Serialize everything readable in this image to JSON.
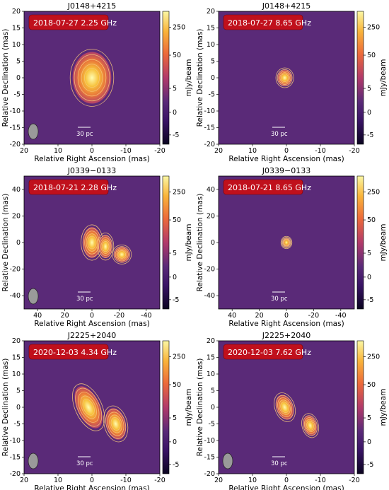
{
  "figure": {
    "cbar_label": "mJy/beam",
    "cbar_ticks": [
      "250",
      "50",
      "5",
      "0",
      "-5"
    ],
    "xlabel": "Relative Right Ascension (mas)",
    "ylabel": "Relative Declination (mas)",
    "scalebar_label": "30 pc",
    "colors": {
      "background": "#5a2a78",
      "contour": "#f6c87a",
      "label_box": "#c0101c",
      "core_hot": "#fff7a6"
    }
  },
  "chart_data": [
    {
      "type": "heatmap",
      "title": "J0148+4215",
      "epoch_label": "2018-07-27 2.25 GHz",
      "xlim": [
        20,
        -20
      ],
      "ylim": [
        -20,
        20
      ],
      "xticks": [
        20,
        10,
        0,
        -10,
        -20
      ],
      "yticks": [
        20,
        15,
        10,
        5,
        0,
        -5,
        -10,
        -15,
        -20
      ],
      "components": [
        {
          "x": 0,
          "y": 0,
          "rx": 6,
          "ry": 8,
          "angle": 0
        }
      ],
      "beam": true
    },
    {
      "type": "heatmap",
      "title": "J0148+4215",
      "epoch_label": "2018-07-27 8.65 GHz",
      "xlim": [
        20,
        -20
      ],
      "ylim": [
        -20,
        20
      ],
      "xticks": [
        20,
        10,
        0,
        -10,
        -20
      ],
      "yticks": [
        20,
        15,
        10,
        5,
        0,
        -5,
        -10,
        -15,
        -20
      ],
      "components": [
        {
          "x": 0.5,
          "y": 0,
          "rx": 2.2,
          "ry": 2.5,
          "angle": 0
        }
      ],
      "beam": false
    },
    {
      "type": "heatmap",
      "title": "J0339−0133",
      "epoch_label": "2018-07-21 2.28 GHz",
      "xlim": [
        50,
        -50
      ],
      "ylim": [
        -50,
        50
      ],
      "xticks": [
        40,
        20,
        0,
        -20,
        -40
      ],
      "yticks": [
        40,
        20,
        0,
        -20,
        -40
      ],
      "components": [
        {
          "x": 0,
          "y": 0,
          "rx": 7,
          "ry": 12,
          "angle": 0
        },
        {
          "x": -10,
          "y": -3,
          "rx": 5,
          "ry": 9,
          "angle": 0
        },
        {
          "x": -22,
          "y": -9,
          "rx": 6,
          "ry": 6,
          "angle": 0
        }
      ],
      "beam": true
    },
    {
      "type": "heatmap",
      "title": "J0339−0133",
      "epoch_label": "2018-07-21 8.65 GHz",
      "xlim": [
        50,
        -50
      ],
      "ylim": [
        -50,
        50
      ],
      "xticks": [
        40,
        20,
        0,
        -20,
        -40
      ],
      "yticks": [
        40,
        20,
        0,
        -20,
        -40
      ],
      "components": [
        {
          "x": 0,
          "y": 0,
          "rx": 3,
          "ry": 3.5,
          "angle": 0
        }
      ],
      "beam": false
    },
    {
      "type": "heatmap",
      "title": "J2225+2040",
      "epoch_label": "2020-12-03 4.34 GHz",
      "xlim": [
        20,
        -20
      ],
      "ylim": [
        -20,
        20
      ],
      "xticks": [
        20,
        10,
        0,
        -10,
        -20
      ],
      "yticks": [
        20,
        15,
        10,
        5,
        0,
        -5,
        -10,
        -15,
        -20
      ],
      "components": [
        {
          "x": 1,
          "y": 0,
          "rx": 3.5,
          "ry": 7,
          "angle": -25
        },
        {
          "x": -7,
          "y": -5,
          "rx": 3,
          "ry": 5,
          "angle": -15
        }
      ],
      "beam": true
    },
    {
      "type": "heatmap",
      "title": "J2225+2040",
      "epoch_label": "2020-12-03 7.62 GHz",
      "xlim": [
        20,
        -20
      ],
      "ylim": [
        -20,
        20
      ],
      "xticks": [
        20,
        10,
        0,
        -10,
        -20
      ],
      "yticks": [
        20,
        15,
        10,
        5,
        0,
        -5,
        -10,
        -15,
        -20
      ],
      "components": [
        {
          "x": 0.5,
          "y": 0,
          "rx": 2.5,
          "ry": 4,
          "angle": -20
        },
        {
          "x": -7,
          "y": -5.5,
          "rx": 2,
          "ry": 3.2,
          "angle": -15
        }
      ],
      "beam": true
    }
  ]
}
